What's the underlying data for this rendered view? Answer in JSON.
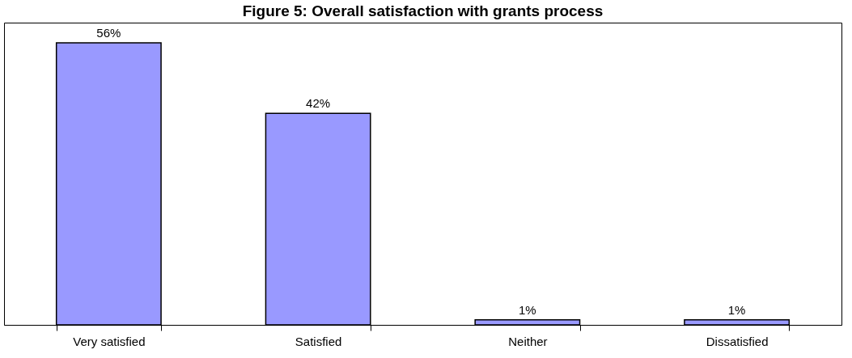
{
  "chart_data": {
    "type": "bar",
    "title": "Figure 5:  Overall satisfaction with grants process",
    "categories": [
      "Very satisfied",
      "Satisfied",
      "Neither",
      "Dissatisfied"
    ],
    "series": [
      {
        "color": "#9999ff",
        "values": [
          56,
          42,
          1,
          1
        ],
        "value_labels": [
          "56%",
          "42%",
          "1%",
          "1%"
        ]
      }
    ],
    "grid": false
  }
}
